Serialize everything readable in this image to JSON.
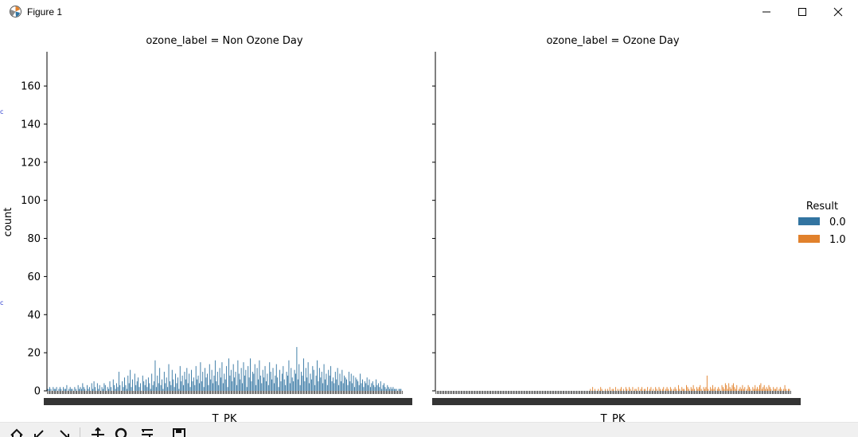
{
  "window": {
    "title": "Figure 1",
    "controls": {
      "minimize": "minimize-icon",
      "maximize": "maximize-icon",
      "close": "close-icon"
    }
  },
  "toolbar": {
    "buttons": [
      "home-icon",
      "back-icon",
      "forward-icon",
      "pan-icon",
      "zoom-icon",
      "configure-subplots-icon",
      "save-icon"
    ]
  },
  "colors": {
    "series_0": "#3274a1",
    "series_1": "#e1812c",
    "axis": "#000000"
  },
  "chart_data": {
    "type": "bar",
    "panels": [
      {
        "title": "ozone_label = Non Ozone Day",
        "xlabel": "T_PK"
      },
      {
        "title": "ozone_label = Ozone Day",
        "xlabel": "T_PK"
      }
    ],
    "ylabel": "count",
    "ylim": [
      0,
      178
    ],
    "yticks": [
      0,
      20,
      40,
      60,
      80,
      100,
      120,
      140,
      160
    ],
    "legend": {
      "title": "Result",
      "entries": [
        "0.0",
        "1.0"
      ],
      "placement": "right"
    },
    "series": [
      {
        "name": "0.0",
        "panel": 0,
        "values": [
          1,
          1,
          2,
          1,
          0,
          2,
          1,
          1,
          2,
          0,
          1,
          2,
          1,
          0,
          2,
          1,
          1,
          3,
          0,
          1,
          2,
          1,
          1,
          0,
          2,
          1,
          0,
          3,
          1,
          2,
          1,
          4,
          2,
          1,
          0,
          3,
          1,
          2,
          0,
          4,
          1,
          5,
          2,
          0,
          4,
          1,
          3,
          0,
          2,
          1,
          4,
          3,
          0,
          2,
          1,
          5,
          2,
          0,
          6,
          3,
          1,
          4,
          2,
          10,
          3,
          0,
          5,
          2,
          7,
          3,
          1,
          8,
          4,
          11,
          2,
          6,
          0,
          9,
          3,
          5,
          7,
          2,
          4,
          0,
          8,
          5,
          3,
          6,
          2,
          7,
          4,
          1,
          9,
          3,
          5,
          16,
          2,
          8,
          4,
          12,
          3,
          6,
          1,
          10,
          4,
          7,
          2,
          14,
          5,
          3,
          11,
          6,
          2,
          9,
          4,
          7,
          1,
          13,
          5,
          8,
          3,
          10,
          6,
          12,
          4,
          9,
          2,
          11,
          5,
          7,
          3,
          13,
          6,
          8,
          4,
          15,
          5,
          10,
          2,
          12,
          7,
          9,
          3,
          14,
          6,
          11,
          4,
          8,
          16,
          5,
          10,
          3,
          12,
          7,
          15,
          4,
          9,
          6,
          13,
          2,
          17,
          8,
          11,
          5,
          14,
          7,
          10,
          3,
          16,
          9,
          6,
          12,
          4,
          15,
          8,
          11,
          2,
          13,
          7,
          17,
          5,
          10,
          9,
          14,
          3,
          12,
          6,
          16,
          8,
          4,
          11,
          7,
          13,
          5,
          9,
          3,
          15,
          10,
          6,
          12,
          4,
          8,
          14,
          7,
          2,
          11,
          5,
          9,
          13,
          6,
          3,
          10,
          8,
          16,
          4,
          12,
          7,
          5,
          11,
          9,
          23,
          6,
          14,
          3,
          10,
          8,
          17,
          5,
          12,
          7,
          15,
          4,
          9,
          6,
          13,
          11,
          3,
          8,
          16,
          5,
          12,
          7,
          10,
          4,
          14,
          6,
          9,
          3,
          11,
          8,
          13,
          5,
          7,
          4,
          10,
          6,
          12,
          3,
          9,
          5,
          11,
          4,
          8,
          7,
          6,
          3,
          10,
          5,
          9,
          4,
          8,
          2,
          7,
          6,
          5,
          3,
          9,
          4,
          6,
          2,
          5,
          4,
          7,
          3,
          6,
          2,
          4,
          5,
          3,
          2,
          6,
          3,
          4,
          2,
          5,
          1,
          3,
          4,
          2,
          1,
          3,
          2,
          1,
          2,
          1,
          2,
          1,
          1,
          1,
          0,
          1,
          1,
          1,
          0
        ]
      },
      {
        "name": "1.0",
        "panel": 1,
        "values": [
          0,
          0,
          0,
          0,
          0,
          0,
          0,
          0,
          0,
          0,
          0,
          0,
          0,
          0,
          0,
          0,
          0,
          0,
          0,
          0,
          0,
          0,
          0,
          0,
          0,
          0,
          0,
          0,
          0,
          0,
          0,
          0,
          0,
          0,
          0,
          0,
          0,
          0,
          0,
          0,
          0,
          0,
          0,
          0,
          0,
          0,
          0,
          0,
          0,
          0,
          0,
          0,
          0,
          0,
          0,
          0,
          0,
          0,
          0,
          0,
          0,
          0,
          0,
          0,
          0,
          0,
          0,
          0,
          0,
          0,
          0,
          0,
          0,
          0,
          0,
          0,
          0,
          0,
          0,
          0,
          0,
          0,
          0,
          0,
          0,
          0,
          0,
          0,
          0,
          0,
          0,
          0,
          0,
          0,
          0,
          0,
          0,
          0,
          0,
          0,
          0,
          0,
          0,
          0,
          0,
          0,
          0,
          0,
          0,
          0,
          0,
          0,
          0,
          0,
          0,
          0,
          0,
          0,
          0,
          0,
          0,
          0,
          0,
          0,
          0,
          0,
          0,
          0,
          0,
          0,
          0,
          0,
          0,
          0,
          0,
          1,
          0,
          2,
          0,
          1,
          0,
          0,
          1,
          0,
          2,
          1,
          0,
          0,
          1,
          0,
          1,
          0,
          2,
          0,
          1,
          1,
          0,
          2,
          0,
          1,
          0,
          1,
          2,
          0,
          1,
          0,
          2,
          1,
          0,
          2,
          1,
          0,
          2,
          0,
          1,
          1,
          0,
          2,
          0,
          1,
          2,
          0,
          1,
          1,
          0,
          2,
          0,
          1,
          2,
          0,
          1,
          0,
          2,
          1,
          0,
          2,
          1,
          0,
          1,
          2,
          0,
          1,
          2,
          1,
          0,
          2,
          1,
          0,
          1,
          2,
          1,
          0,
          3,
          1,
          0,
          2,
          1,
          1,
          0,
          3,
          2,
          1,
          0,
          2,
          1,
          3,
          1,
          0,
          2,
          1,
          2,
          3,
          1,
          0,
          2,
          1,
          2,
          8,
          1,
          0,
          2,
          1,
          3,
          1,
          2,
          0,
          1,
          2,
          1,
          0,
          3,
          2,
          1,
          4,
          3,
          1,
          4,
          2,
          1,
          3,
          4,
          2,
          1,
          3,
          0,
          1,
          2,
          1,
          3,
          1,
          2,
          0,
          1,
          3,
          2,
          1,
          0,
          2,
          1,
          3,
          1,
          2,
          1,
          3,
          4,
          1,
          2,
          3,
          1,
          2,
          1,
          3,
          2,
          1,
          0,
          2,
          1,
          1,
          2,
          0,
          1,
          2,
          1,
          0,
          1,
          3,
          1,
          0,
          1,
          1,
          0
        ]
      }
    ]
  }
}
